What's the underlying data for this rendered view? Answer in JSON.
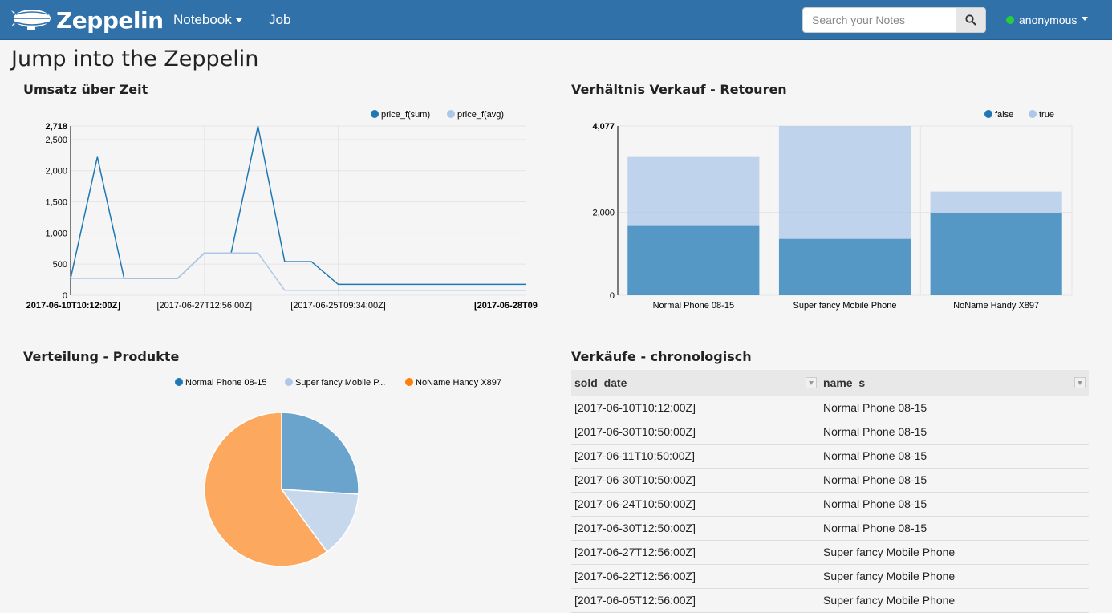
{
  "app": {
    "brand": "Zeppelin",
    "nav": {
      "notebook": "Notebook",
      "job": "Job"
    },
    "search": {
      "placeholder": "Search your Notes",
      "value": ""
    },
    "user": {
      "name": "anonymous",
      "status_color": "#25d03a"
    },
    "nav_color": "#3071a9"
  },
  "page": {
    "title": "Jump into the Zeppelin"
  },
  "paragraphs": {
    "umsatz": {
      "title": "Umsatz über Zeit"
    },
    "verhaeltnis": {
      "title": "Verhältnis Verkauf - Retouren"
    },
    "verteilung": {
      "title": "Verteilung - Produkte"
    },
    "verkaeufe": {
      "title": "Verkäufe - chronologisch"
    }
  },
  "chart_data": [
    {
      "type": "line",
      "title": "Umsatz über Zeit",
      "x": [
        "[2017-06-10T10:12:00Z]",
        "",
        "",
        "",
        "",
        "[2017-06-27T12:56:00Z]",
        "",
        "",
        "",
        "",
        "[2017-06-25T09:34:00Z]",
        "",
        "",
        "",
        "",
        "",
        "",
        "[2017-06-28T09"
      ],
      "x_tick_labels": [
        "2017-06-10T10:12:00Z]",
        "[2017-06-27T12:56:00Z]",
        "[2017-06-25T09:34:00Z]",
        "[2017-06-28T09"
      ],
      "y_ticks": [
        "2,718",
        "2,500",
        "2,000",
        "1,500",
        "1,000",
        "500",
        "0"
      ],
      "ylim": [
        0,
        2718
      ],
      "series": [
        {
          "name": "price_f(sum)",
          "color": "#1f77b4",
          "values": [
            270,
            2220,
            270,
            270,
            270,
            680,
            680,
            2718,
            540,
            540,
            175,
            175,
            175,
            175,
            175,
            175,
            175,
            175
          ]
        },
        {
          "name": "price_f(avg)",
          "color": "#aec7e8",
          "values": [
            270,
            270,
            270,
            270,
            270,
            680,
            680,
            680,
            80,
            80,
            80,
            80,
            80,
            80,
            80,
            80,
            80,
            80
          ]
        }
      ],
      "legend": "top-right",
      "grid": true
    },
    {
      "type": "bar",
      "stacked": true,
      "title": "Verhältnis Verkauf - Retouren",
      "categories": [
        "Normal Phone 08-15",
        "Super fancy Mobile Phone",
        "NoName Handy X897"
      ],
      "y_ticks": [
        "4,077",
        "2,000",
        "0"
      ],
      "ylim": [
        0,
        4077
      ],
      "series": [
        {
          "name": "false",
          "color": "#1f77b4",
          "values": [
            1670,
            1360,
            1980
          ]
        },
        {
          "name": "true",
          "color": "#aec7e8",
          "values": [
            1660,
            2717,
            520
          ]
        }
      ],
      "legend": "top-right",
      "grid": true
    },
    {
      "type": "pie",
      "title": "Verteilung - Produkte",
      "legend_labels": [
        "Normal Phone 08-15",
        "Super fancy Mobile P...",
        "NoName Handy X897"
      ],
      "categories": [
        "Normal Phone 08-15",
        "Super fancy Mobile Phone",
        "NoName Handy X897"
      ],
      "values": [
        26,
        14,
        60
      ],
      "colors": [
        "#1f77b4",
        "#aec7e8",
        "#ff7f0e"
      ],
      "legend": "top"
    }
  ],
  "table": {
    "columns": [
      "sold_date",
      "name_s"
    ],
    "rows": [
      [
        "[2017-06-10T10:12:00Z]",
        "Normal Phone 08-15"
      ],
      [
        "[2017-06-30T10:50:00Z]",
        "Normal Phone 08-15"
      ],
      [
        "[2017-06-11T10:50:00Z]",
        "Normal Phone 08-15"
      ],
      [
        "[2017-06-30T10:50:00Z]",
        "Normal Phone 08-15"
      ],
      [
        "[2017-06-24T10:50:00Z]",
        "Normal Phone 08-15"
      ],
      [
        "[2017-06-30T12:50:00Z]",
        "Normal Phone 08-15"
      ],
      [
        "[2017-06-27T12:56:00Z]",
        "Super fancy Mobile Phone"
      ],
      [
        "[2017-06-22T12:56:00Z]",
        "Super fancy Mobile Phone"
      ],
      [
        "[2017-06-05T12:56:00Z]",
        "Super fancy Mobile Phone"
      ]
    ]
  }
}
